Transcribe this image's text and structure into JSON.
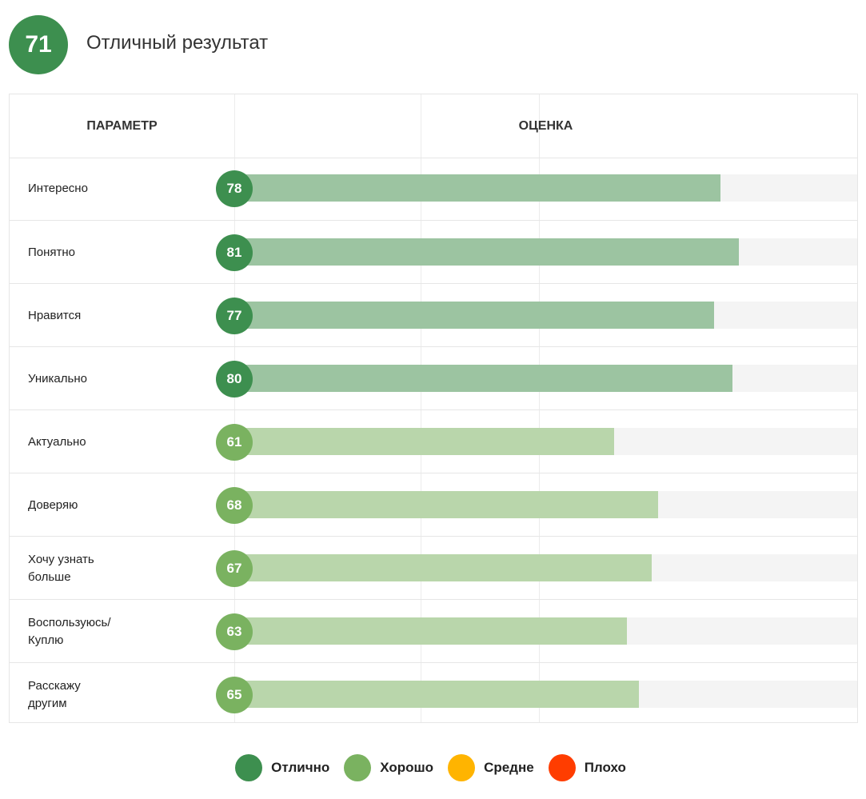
{
  "summary": {
    "score": "71",
    "title": "Отличный результат",
    "color": "#3d8f4f"
  },
  "chart_data": {
    "type": "bar",
    "orientation": "horizontal",
    "headers": {
      "param": "ПАРАМЕТР",
      "score": "ОЦЕНКА"
    },
    "xlim": [
      0,
      100
    ],
    "categories": [
      "Интересно",
      "Понятно",
      "Нравится",
      "Уникально",
      "Актуально",
      "Доверяю",
      "Хочу узнать\nбольше",
      "Воспользуюсь/\nКуплю",
      "Расскажу\nдругим"
    ],
    "values": [
      78,
      81,
      77,
      80,
      61,
      68,
      67,
      63,
      65
    ],
    "ratings": [
      "excellent",
      "excellent",
      "excellent",
      "excellent",
      "good",
      "good",
      "good",
      "good",
      "good"
    ],
    "value_labels": [
      "78",
      "81",
      "77",
      "80",
      "61",
      "68",
      "67",
      "63",
      "65"
    ]
  },
  "legend": [
    {
      "key": "excellent",
      "label": "Отлично",
      "color": "#3d8f4f",
      "bar_color": "#9cc4a1"
    },
    {
      "key": "good",
      "label": "Хорошо",
      "color": "#7ab260",
      "bar_color": "#b9d6ab"
    },
    {
      "key": "average",
      "label": "Средне",
      "color": "#ffb400",
      "bar_color": "#ffe09a"
    },
    {
      "key": "bad",
      "label": "Плохо",
      "color": "#ff3d00",
      "bar_color": "#ffb39a"
    }
  ]
}
